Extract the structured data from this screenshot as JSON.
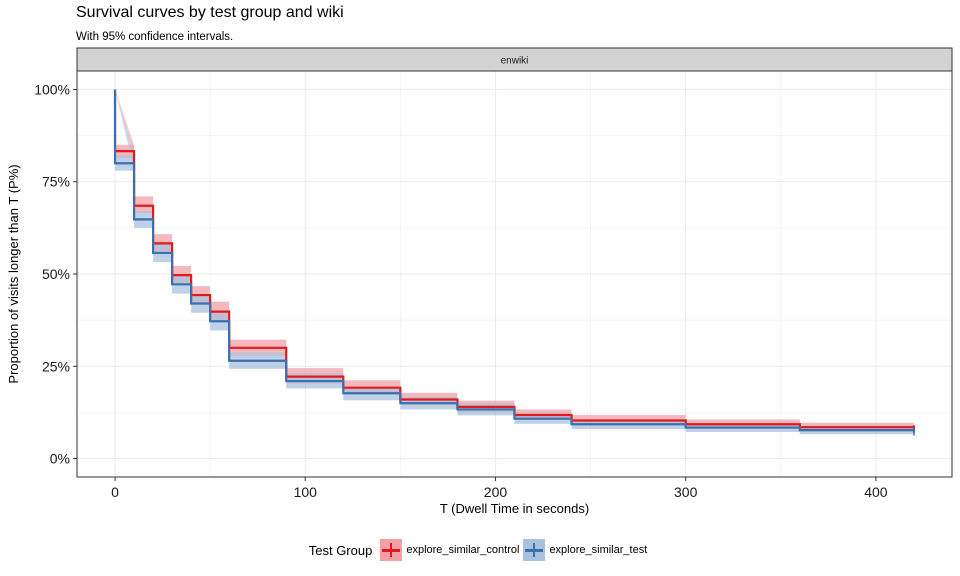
{
  "title": "Survival curves by test group and wiki",
  "subtitle": "With 95% confidence intervals.",
  "chart_data": {
    "type": "line",
    "step": true,
    "facet": "enwiki",
    "xlabel": "T (Dwell Time in seconds)",
    "ylabel": "Proportion of visits longer than T (P%)",
    "xlim": [
      -20,
      440
    ],
    "ylim": [
      -0.05,
      1.05
    ],
    "xticks": [
      0,
      100,
      200,
      300,
      400
    ],
    "xtick_labels": [
      "0",
      "100",
      "200",
      "300",
      "400"
    ],
    "yticks": [
      0,
      0.25,
      0.5,
      0.75,
      1.0
    ],
    "ytick_labels": [
      "0%",
      "25%",
      "50%",
      "75%",
      "100%"
    ],
    "grid": true,
    "legend": {
      "title": "Test Group",
      "position": "bottom"
    },
    "series": [
      {
        "name": "explore_similar_control",
        "color": "#e31a1c",
        "fill": "#f2a0a6",
        "x": [
          0,
          10,
          20,
          30,
          40,
          50,
          60,
          90,
          120,
          150,
          180,
          210,
          240,
          300,
          360,
          420
        ],
        "y": [
          0.833,
          0.685,
          0.583,
          0.497,
          0.443,
          0.398,
          0.3,
          0.222,
          0.192,
          0.16,
          0.14,
          0.118,
          0.103,
          0.093,
          0.085,
          0.08
        ],
        "lower": [
          0.815,
          0.665,
          0.56,
          0.475,
          0.42,
          0.375,
          0.278,
          0.203,
          0.175,
          0.145,
          0.125,
          0.105,
          0.09,
          0.08,
          0.072,
          0.068
        ],
        "upper": [
          0.85,
          0.71,
          0.608,
          0.522,
          0.467,
          0.425,
          0.322,
          0.245,
          0.212,
          0.178,
          0.157,
          0.133,
          0.118,
          0.106,
          0.097,
          0.092
        ]
      },
      {
        "name": "explore_similar_test",
        "color": "#3a6fb0",
        "fill": "#a9c1dd",
        "x": [
          0,
          10,
          20,
          30,
          40,
          50,
          60,
          90,
          120,
          150,
          180,
          210,
          240,
          300,
          360,
          420
        ],
        "y": [
          0.8,
          0.648,
          0.557,
          0.472,
          0.42,
          0.372,
          0.265,
          0.21,
          0.177,
          0.15,
          0.133,
          0.108,
          0.093,
          0.084,
          0.077,
          0.073
        ],
        "lower": [
          0.78,
          0.625,
          0.532,
          0.447,
          0.395,
          0.347,
          0.243,
          0.19,
          0.158,
          0.133,
          0.117,
          0.094,
          0.08,
          0.072,
          0.066,
          0.062
        ],
        "upper": [
          0.82,
          0.67,
          0.58,
          0.495,
          0.443,
          0.397,
          0.287,
          0.23,
          0.195,
          0.167,
          0.15,
          0.122,
          0.106,
          0.096,
          0.089,
          0.085
        ]
      }
    ]
  }
}
